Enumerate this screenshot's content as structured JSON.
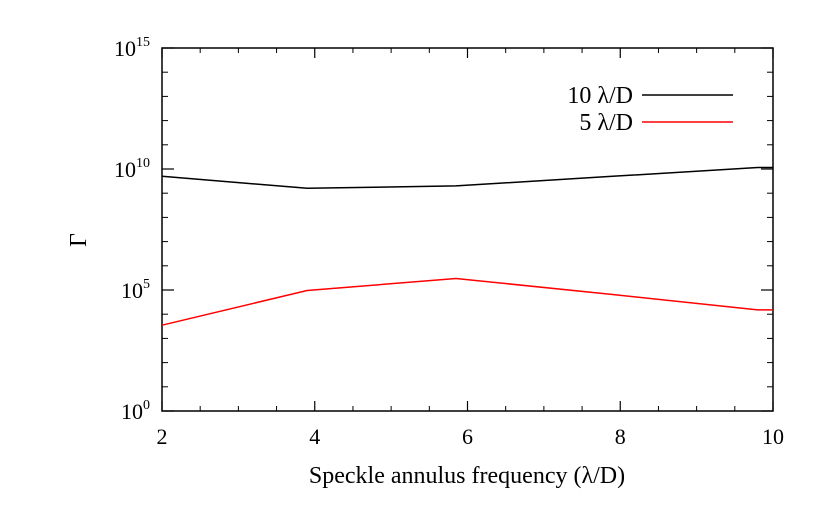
{
  "chart_data": {
    "type": "line",
    "title": "",
    "xlabel": "Speckle annulus frequency (λ/D)",
    "ylabel": "Γ",
    "xlim": [
      2,
      10
    ],
    "ylim": [
      1,
      1000000000000000.0
    ],
    "yscale": "log",
    "grid": false,
    "legend_position": "top-right",
    "x_ticks": [
      {
        "value": 2,
        "label": "2"
      },
      {
        "value": 4,
        "label": "4"
      },
      {
        "value": 6,
        "label": "6"
      },
      {
        "value": 8,
        "label": "8"
      },
      {
        "value": 10,
        "label": "10"
      }
    ],
    "y_ticks": [
      {
        "value": 1,
        "base": "10",
        "exp": "0"
      },
      {
        "value": 100000,
        "base": "10",
        "exp": "5"
      },
      {
        "value": 10000000000,
        "base": "10",
        "exp": "10"
      },
      {
        "value": 1000000000000000,
        "base": "10",
        "exp": "15"
      }
    ],
    "series": [
      {
        "name": "10 λ/D",
        "color": "#000000",
        "x": [
          2,
          3.9,
          5.85,
          7.9,
          9.8,
          10
        ],
        "y": [
          5000000000.0,
          1600000000.0,
          2000000000.0,
          5000000000.0,
          11500000000.0,
          11500000000.0
        ]
      },
      {
        "name": "5 λ/D",
        "color": "#ff0000",
        "x": [
          2,
          3.9,
          5.85,
          7.9,
          9.8,
          10
        ],
        "y": [
          3500.0,
          95000.0,
          300000.0,
          65000.0,
          15000.0,
          15000.0
        ]
      }
    ]
  }
}
